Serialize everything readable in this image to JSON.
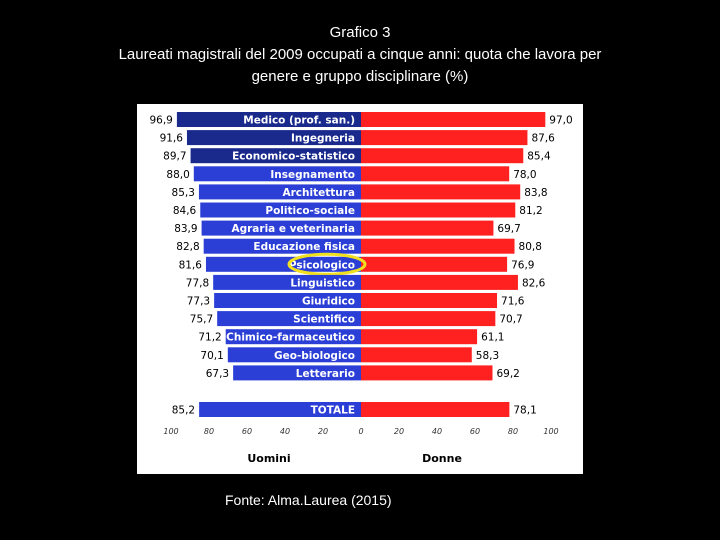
{
  "title": {
    "line1": "Grafico 3",
    "line2": "Laureati magistrali del 2009 occupati a cinque anni: quota che lavora per",
    "line3": "genere e gruppo disciplinare (%)"
  },
  "source": "Fonte: Alma.Laurea (2015)",
  "colors": {
    "men_dark": "#1a2a8c",
    "men": "#2b3fd6",
    "women": "#ff2020",
    "highlight": "#f0e020"
  },
  "chart_data": {
    "type": "bar",
    "orientation": "horizontal-butterfly",
    "categories": [
      "Medico (prof. san.)",
      "Ingegneria",
      "Economico-statistico",
      "Insegnamento",
      "Architettura",
      "Politico-sociale",
      "Agraria e veterinaria",
      "Educazione fisica",
      "Psicologico",
      "Linguistico",
      "Giuridico",
      "Scientifico",
      "Chimico-farmaceutico",
      "Geo-biologico",
      "Letterario",
      "TOTALE"
    ],
    "series": [
      {
        "name": "Uomini",
        "values": [
          96.9,
          91.6,
          89.7,
          88.0,
          85.3,
          84.6,
          83.9,
          82.8,
          81.6,
          77.8,
          77.3,
          75.7,
          71.2,
          70.1,
          67.3,
          85.2
        ]
      },
      {
        "name": "Donne",
        "values": [
          97.0,
          87.6,
          85.4,
          78.0,
          83.8,
          81.2,
          69.7,
          80.8,
          76.9,
          82.6,
          71.6,
          70.7,
          61.1,
          58.3,
          69.2,
          78.1
        ]
      }
    ],
    "value_labels_men": [
      "96,9",
      "91,6",
      "89,7",
      "88,0",
      "85,3",
      "84,6",
      "83,9",
      "82,8",
      "81,6",
      "77,8",
      "77,3",
      "75,7",
      "71,2",
      "70,1",
      "67,3",
      "85,2"
    ],
    "value_labels_women": [
      "97,0",
      "87,6",
      "85,4",
      "78,0",
      "83,8",
      "81,2",
      "69,7",
      "80,8",
      "76,9",
      "82,6",
      "71,6",
      "70,7",
      "61,1",
      "58,3",
      "69,2",
      "78,1"
    ],
    "xticks_left": [
      "100",
      "80",
      "60",
      "40",
      "20",
      "0"
    ],
    "xticks_right": [
      "20",
      "40",
      "60",
      "80",
      "100"
    ],
    "xlabel_left": "Uomini",
    "xlabel_right": "Donne",
    "xlim": [
      0,
      100
    ],
    "highlighted_category": "Psicologico"
  }
}
